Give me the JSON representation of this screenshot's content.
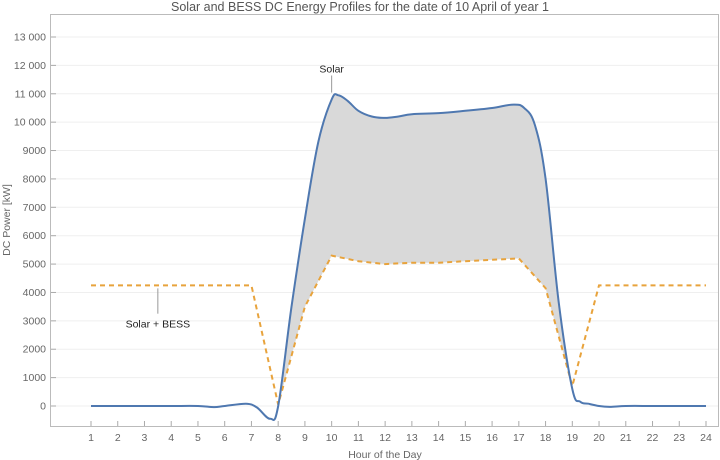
{
  "chart_data": {
    "type": "line",
    "title": "Solar and BESS DC Energy Profiles for the date of 10 April of year 1",
    "xlabel": "Hour of the Day",
    "ylabel": "DC Power [kW]",
    "xlim": [
      -0.5,
      24.5
    ],
    "ylim": [
      -700,
      13800
    ],
    "x_ticks": [
      1,
      2,
      3,
      4,
      5,
      6,
      7,
      8,
      9,
      10,
      11,
      12,
      13,
      14,
      15,
      16,
      17,
      18,
      19,
      20,
      21,
      22,
      23,
      24
    ],
    "y_ticks": [
      0,
      1000,
      2000,
      3000,
      4000,
      5000,
      6000,
      7000,
      8000,
      9000,
      10000,
      11000,
      12000,
      13000
    ],
    "y_tick_labels": [
      "0",
      "1000",
      "2000",
      "3000",
      "4000",
      "5000",
      "6000",
      "7000",
      "8000",
      "9000",
      "10 000",
      "11 000",
      "12 000",
      "13 000"
    ],
    "grid": "horizontal",
    "fill_between": {
      "series": [
        "Solar",
        "Solar + BESS"
      ],
      "color": "#d9d9d9"
    },
    "series": [
      {
        "name": "Solar",
        "style": "solid",
        "color": "#4f78b0",
        "x": [
          1,
          2,
          3,
          4,
          5,
          5.6,
          6,
          6.8,
          7.2,
          7.7,
          8,
          8.5,
          9,
          9.5,
          10,
          10.25,
          10.6,
          11,
          11.5,
          12,
          12.5,
          13,
          14,
          15,
          16,
          16.8,
          17.2,
          17.6,
          18,
          18.5,
          19,
          19.3,
          19.6,
          20,
          20.4,
          21,
          22,
          23,
          24
        ],
        "values": [
          0,
          0,
          0,
          0,
          0,
          -40,
          0,
          80,
          -50,
          -450,
          0,
          3500,
          6600,
          9300,
          10800,
          10950,
          10750,
          10400,
          10200,
          10150,
          10200,
          10280,
          10320,
          10400,
          10500,
          10620,
          10500,
          9900,
          8000,
          3600,
          600,
          150,
          80,
          0,
          -30,
          0,
          0,
          0,
          0
        ]
      },
      {
        "name": "Solar + BESS",
        "style": "dashed",
        "color": "#e8a33c",
        "x": [
          1,
          2,
          3,
          4,
          5,
          6,
          7,
          8,
          9,
          10,
          11,
          12,
          13,
          14,
          15,
          16,
          17,
          18,
          19,
          20,
          21,
          22,
          23,
          24
        ],
        "values": [
          4250,
          4250,
          4250,
          4250,
          4250,
          4250,
          4250,
          50,
          3500,
          5300,
          5100,
          5000,
          5050,
          5050,
          5100,
          5150,
          5200,
          4150,
          700,
          4250,
          4250,
          4250,
          4250,
          4250
        ]
      }
    ],
    "annotations": [
      {
        "text": "Solar",
        "x": 10.0,
        "y": 11750,
        "anchor_x": 10.0,
        "anchor_y": 10900
      },
      {
        "text": "Solar + BESS",
        "x": 3.5,
        "y": 2900,
        "anchor_x": 3.5,
        "anchor_y": 4250
      }
    ]
  }
}
